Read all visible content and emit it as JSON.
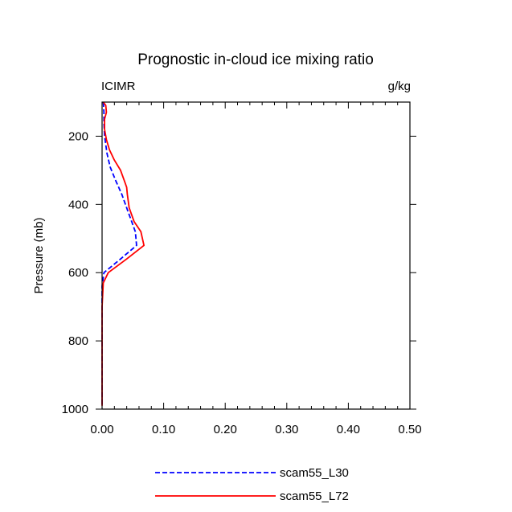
{
  "chart_data": {
    "type": "line",
    "title": "Prognostic in-cloud ice mixing ratio",
    "left_label": "ICIMR",
    "right_label": "g/kg",
    "xlabel": "",
    "ylabel": "Pressure (mb)",
    "xlim": [
      0,
      0.5
    ],
    "ylim": [
      100,
      1000
    ],
    "y_inverted": true,
    "xticks": [
      0,
      0.1,
      0.2,
      0.3,
      0.4,
      0.5
    ],
    "xtick_labels": [
      "0.00",
      "0.10",
      "0.20",
      "0.30",
      "0.40",
      "0.50"
    ],
    "yticks": [
      200,
      400,
      600,
      800,
      1000
    ],
    "ytick_labels": [
      "200",
      "400",
      "600",
      "800",
      "1000"
    ],
    "grid": false,
    "legend_position": "bottom",
    "series": [
      {
        "name": "scam55_L30",
        "color": "#0000ff",
        "dash": "dashed",
        "points": [
          [
            0.002,
            100
          ],
          [
            0.003,
            130
          ],
          [
            0.003,
            160
          ],
          [
            0.004,
            200
          ],
          [
            0.008,
            250
          ],
          [
            0.013,
            290
          ],
          [
            0.022,
            330
          ],
          [
            0.032,
            370
          ],
          [
            0.04,
            410
          ],
          [
            0.048,
            450
          ],
          [
            0.054,
            480
          ],
          [
            0.056,
            520
          ],
          [
            0.03,
            560
          ],
          [
            0.003,
            600
          ],
          [
            0.0,
            640
          ],
          [
            0.0,
            700
          ],
          [
            0.0,
            800
          ],
          [
            0.0,
            900
          ],
          [
            0.0,
            990
          ]
        ]
      },
      {
        "name": "scam55_L72",
        "color": "#ff0000",
        "dash": "solid",
        "points": [
          [
            0.002,
            100
          ],
          [
            0.006,
            110
          ],
          [
            0.007,
            130
          ],
          [
            0.004,
            150
          ],
          [
            0.004,
            180
          ],
          [
            0.007,
            210
          ],
          [
            0.012,
            240
          ],
          [
            0.02,
            270
          ],
          [
            0.03,
            300
          ],
          [
            0.036,
            330
          ],
          [
            0.04,
            350
          ],
          [
            0.041,
            370
          ],
          [
            0.044,
            410
          ],
          [
            0.052,
            450
          ],
          [
            0.063,
            480
          ],
          [
            0.068,
            520
          ],
          [
            0.04,
            560
          ],
          [
            0.01,
            600
          ],
          [
            0.002,
            630
          ],
          [
            0.0,
            700
          ],
          [
            0.0,
            800
          ],
          [
            0.0,
            900
          ],
          [
            0.0,
            990
          ]
        ]
      }
    ]
  }
}
